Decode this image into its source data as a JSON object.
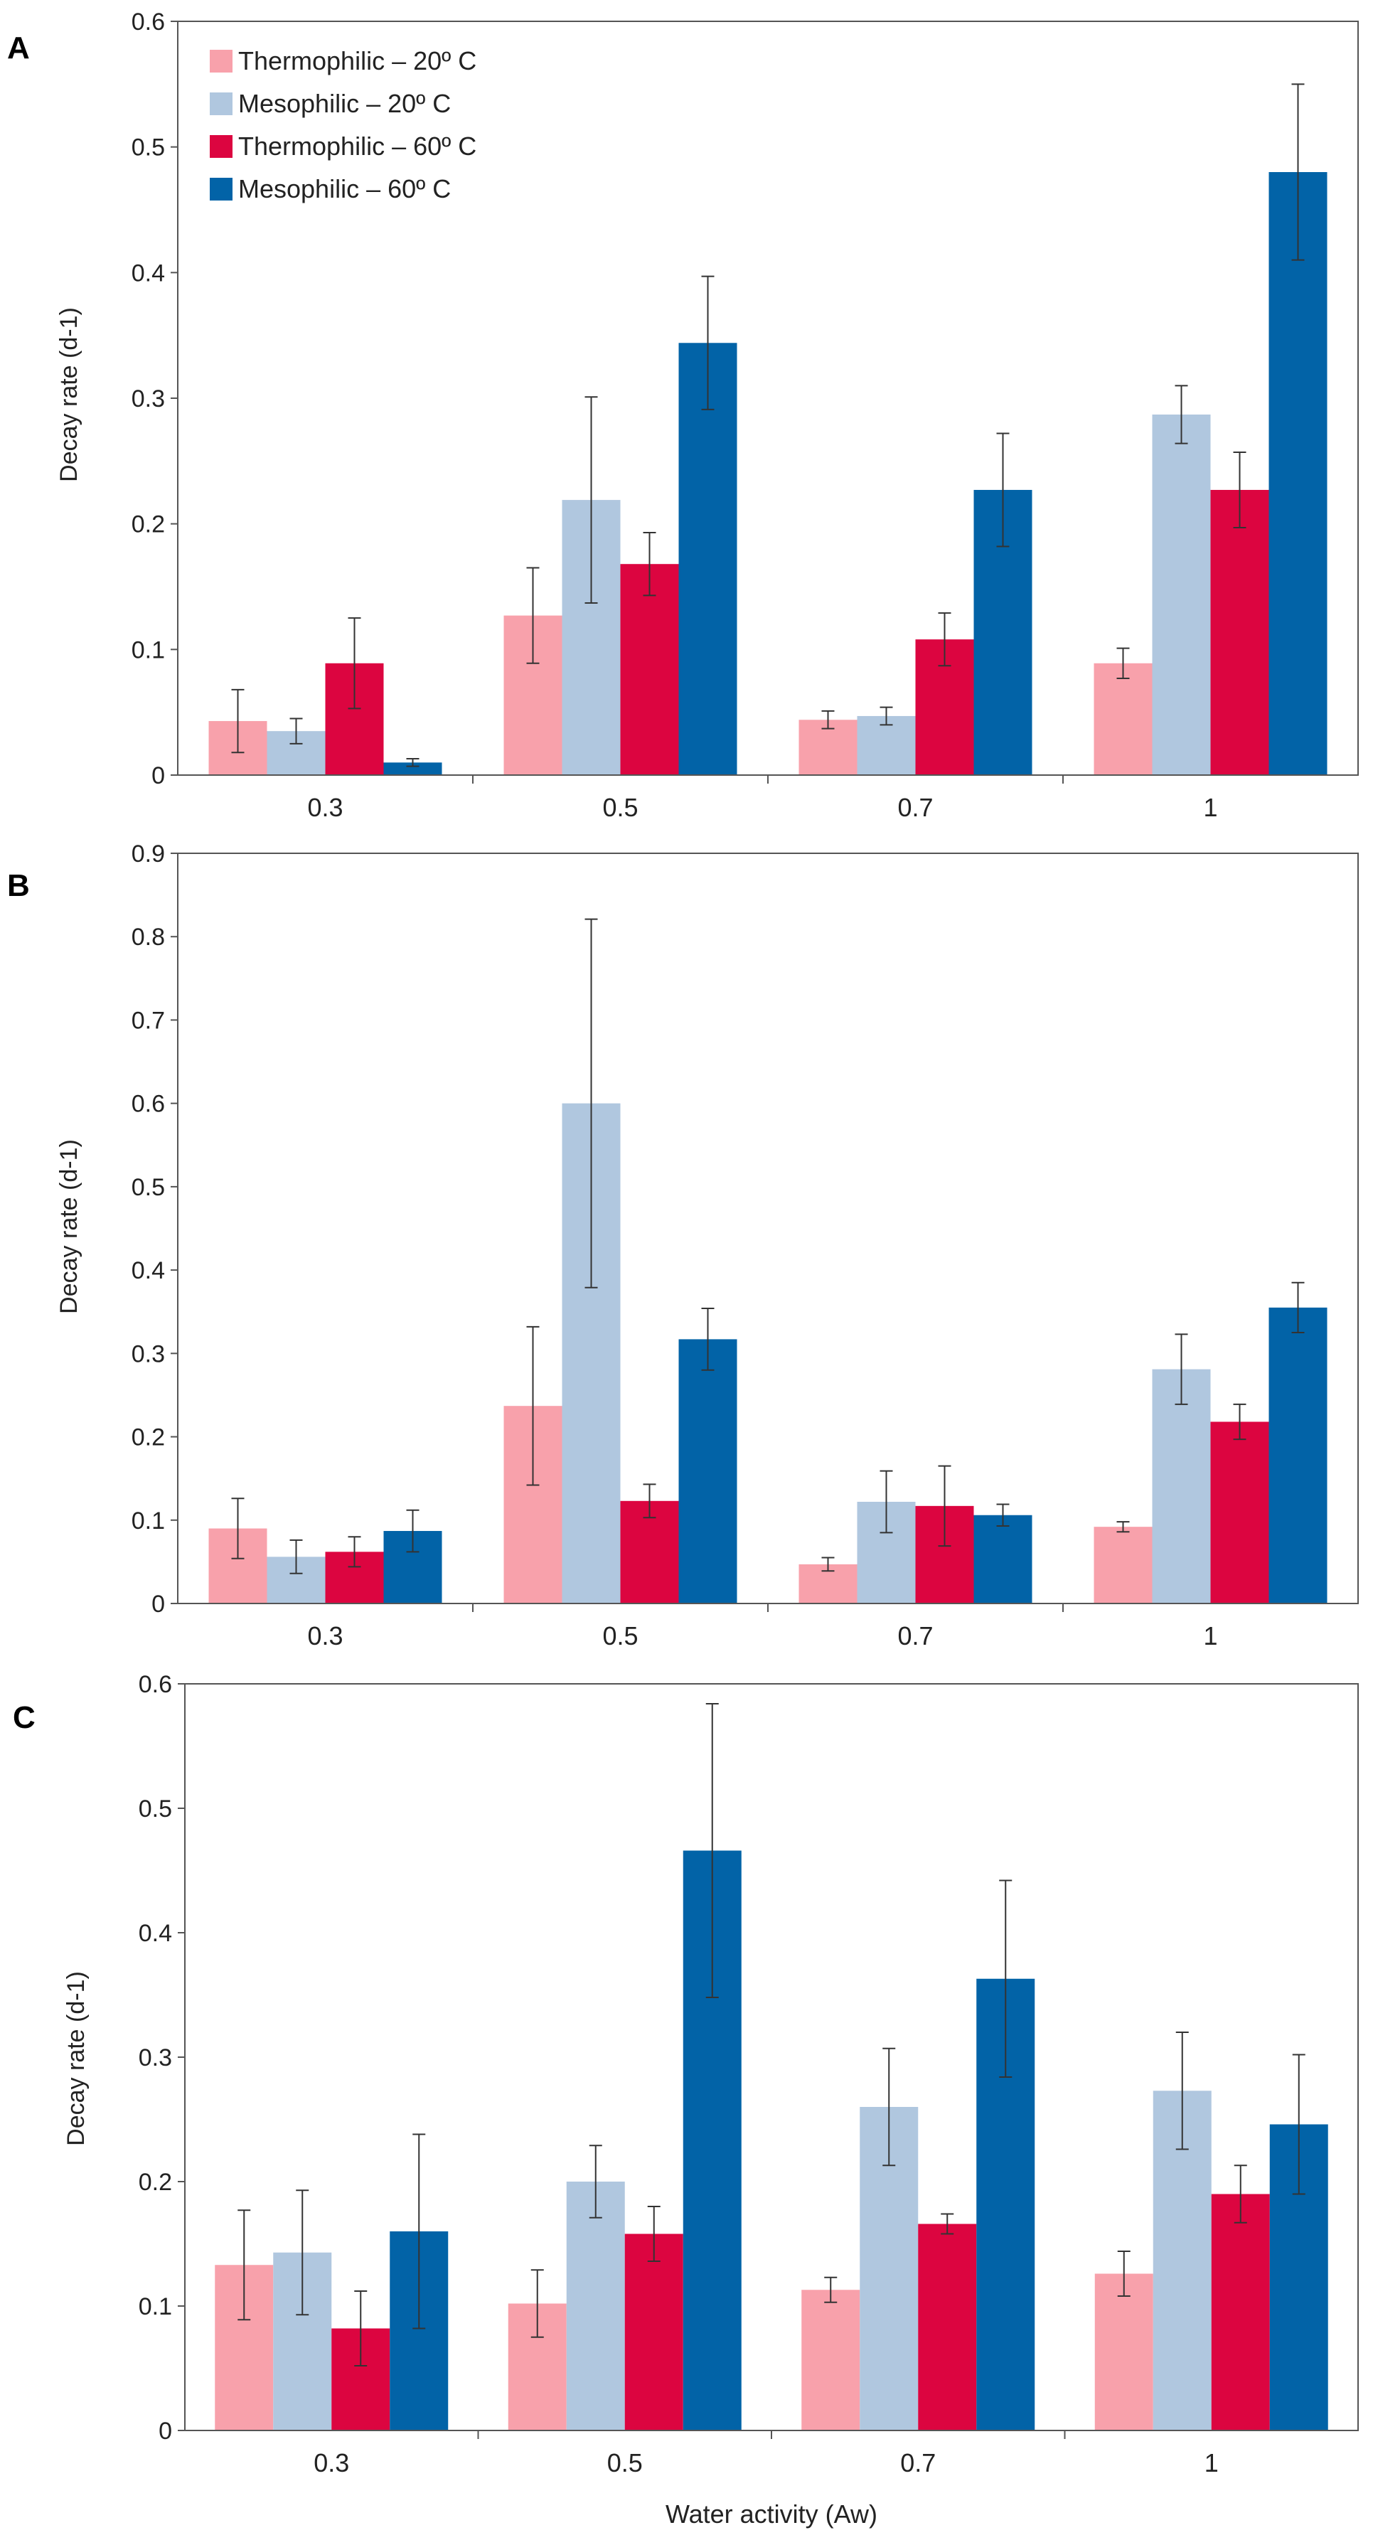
{
  "figure": {
    "xlabel": "Water activity (Aw)",
    "legend": {
      "placement": "top-left of panel A",
      "entries": [
        {
          "label": "Thermophilic – 20º C",
          "color": "#F8A1AB"
        },
        {
          "label": "Mesophilic – 20º C",
          "color": "#B0C7DF"
        },
        {
          "label": "Thermophilic – 60º C",
          "color": "#DC0540"
        },
        {
          "label": "Mesophilic – 60º C",
          "color": "#0263A7"
        }
      ]
    }
  },
  "chart_data": [
    {
      "panel": "A",
      "type": "bar",
      "ylabel": "Decay rate (d-1)",
      "ylim": [
        0,
        0.6
      ],
      "yticks": [
        0,
        0.1,
        0.2,
        0.3,
        0.4,
        0.5,
        0.6
      ],
      "ytick_labels": [
        "0",
        "0.1",
        "0.2",
        "0.3",
        "0.4",
        "0.5",
        "0.6"
      ],
      "categories": [
        "0.3",
        "0.5",
        "0.7",
        "1"
      ],
      "series": [
        {
          "name": "Thermophilic – 20º C",
          "values": [
            0.043,
            0.127,
            0.044,
            0.089
          ],
          "errors": [
            0.025,
            0.038,
            0.007,
            0.012
          ]
        },
        {
          "name": "Mesophilic – 20º C",
          "values": [
            0.035,
            0.219,
            0.047,
            0.287
          ],
          "errors": [
            0.01,
            0.082,
            0.007,
            0.023
          ]
        },
        {
          "name": "Thermophilic – 60º C",
          "values": [
            0.089,
            0.168,
            0.108,
            0.227
          ],
          "errors": [
            0.036,
            0.025,
            0.021,
            0.03
          ]
        },
        {
          "name": "Mesophilic – 60º C",
          "values": [
            0.01,
            0.344,
            0.227,
            0.48
          ],
          "errors": [
            0.003,
            0.053,
            0.045,
            0.07
          ]
        }
      ]
    },
    {
      "panel": "B",
      "type": "bar",
      "ylabel": "Decay rate (d-1)",
      "ylim": [
        0,
        0.9
      ],
      "yticks": [
        0,
        0.1,
        0.2,
        0.3,
        0.4,
        0.5,
        0.6,
        0.7,
        0.8,
        0.9
      ],
      "ytick_labels": [
        "0",
        "0.1",
        "0.2",
        "0.3",
        "0.4",
        "0.5",
        "0.6",
        "0.7",
        "0.8",
        "0.9"
      ],
      "categories": [
        "0.3",
        "0.5",
        "0.7",
        "1"
      ],
      "series": [
        {
          "name": "Thermophilic – 20º C",
          "values": [
            0.09,
            0.237,
            0.047,
            0.092
          ],
          "errors": [
            0.036,
            0.095,
            0.008,
            0.006
          ]
        },
        {
          "name": "Mesophilic – 20º C",
          "values": [
            0.056,
            0.6,
            0.122,
            0.281
          ],
          "errors": [
            0.02,
            0.221,
            0.037,
            0.042
          ]
        },
        {
          "name": "Thermophilic – 60º C",
          "values": [
            0.062,
            0.123,
            0.117,
            0.218
          ],
          "errors": [
            0.018,
            0.02,
            0.048,
            0.021
          ]
        },
        {
          "name": "Mesophilic – 60º C",
          "values": [
            0.087,
            0.317,
            0.106,
            0.355
          ],
          "errors": [
            0.025,
            0.037,
            0.013,
            0.03
          ]
        }
      ]
    },
    {
      "panel": "C",
      "type": "bar",
      "ylabel": "Decay rate (d-1)",
      "ylim": [
        0,
        0.6
      ],
      "yticks": [
        0,
        0.1,
        0.2,
        0.3,
        0.4,
        0.5,
        0.6
      ],
      "ytick_labels": [
        "0",
        "0.1",
        "0.2",
        "0.3",
        "0.4",
        "0.5",
        "0.6"
      ],
      "categories": [
        "0.3",
        "0.5",
        "0.7",
        "1"
      ],
      "series": [
        {
          "name": "Thermophilic – 20º C",
          "values": [
            0.133,
            0.102,
            0.113,
            0.126
          ],
          "errors": [
            0.044,
            0.027,
            0.01,
            0.018
          ]
        },
        {
          "name": "Mesophilic – 20º C",
          "values": [
            0.143,
            0.2,
            0.26,
            0.273
          ],
          "errors": [
            0.05,
            0.029,
            0.047,
            0.047
          ]
        },
        {
          "name": "Thermophilic – 60º C",
          "values": [
            0.082,
            0.158,
            0.166,
            0.19
          ],
          "errors": [
            0.03,
            0.022,
            0.008,
            0.023
          ]
        },
        {
          "name": "Mesophilic – 60º C",
          "values": [
            0.16,
            0.466,
            0.363,
            0.246
          ],
          "errors": [
            0.078,
            0.118,
            0.079,
            0.056
          ]
        }
      ]
    }
  ]
}
